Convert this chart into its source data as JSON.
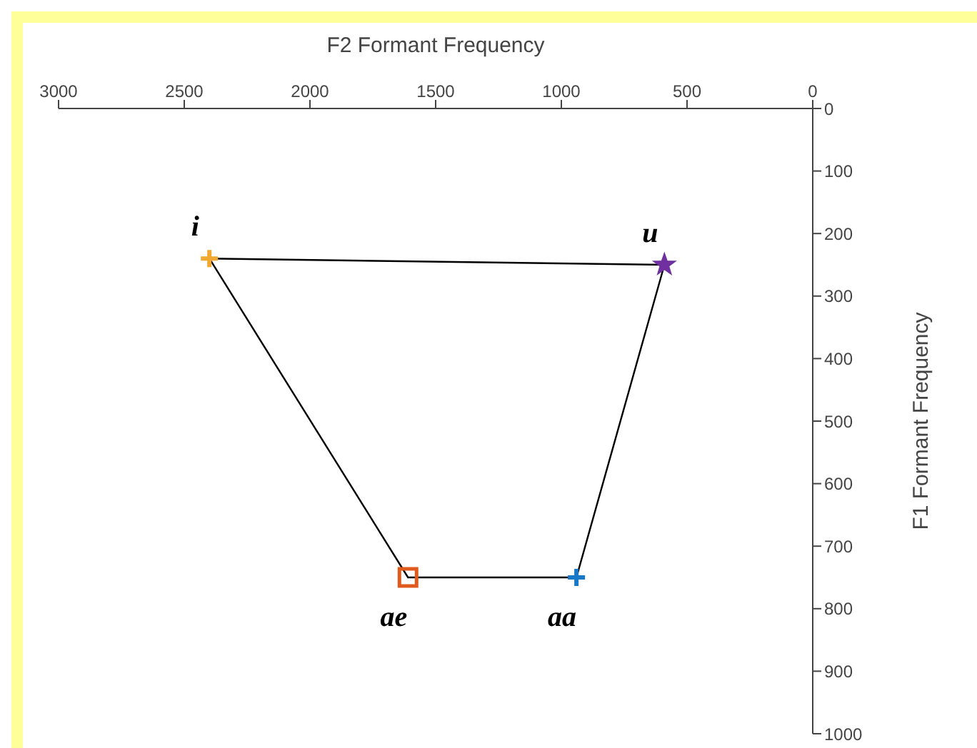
{
  "chart_data": {
    "type": "scatter",
    "xlabel": "F2 Formant Frequency",
    "ylabel": "F1 Formant Frequency",
    "xlim": [
      3000,
      0
    ],
    "xticks": [
      3000,
      2500,
      2000,
      1500,
      1000,
      500,
      0
    ],
    "ylim": [
      1000,
      0
    ],
    "yticks": [
      0,
      100,
      200,
      300,
      400,
      500,
      600,
      700,
      800,
      900,
      1000
    ],
    "grid": false,
    "legend": false,
    "series": [
      {
        "type": "line",
        "color": "#000000",
        "marker": "none",
        "x": [
          2400,
          590
        ],
        "values": [
          240,
          250
        ]
      },
      {
        "type": "line",
        "color": "#000000",
        "marker": "none",
        "x": [
          2400,
          1610,
          940,
          590
        ],
        "values": [
          240,
          750,
          750,
          250
        ]
      },
      {
        "name": "i",
        "color": "#f0a830",
        "marker": "cross",
        "x": [
          2400
        ],
        "values": [
          240
        ]
      },
      {
        "name": "u",
        "color": "#7030a0",
        "marker": "star",
        "x": [
          590
        ],
        "values": [
          250
        ]
      },
      {
        "name": "ae",
        "color": "#e05a1e",
        "marker": "square",
        "x": [
          1610
        ],
        "values": [
          750
        ]
      },
      {
        "name": "aa",
        "color": "#1878c8",
        "marker": "cross",
        "x": [
          940
        ],
        "values": [
          750
        ]
      }
    ]
  }
}
